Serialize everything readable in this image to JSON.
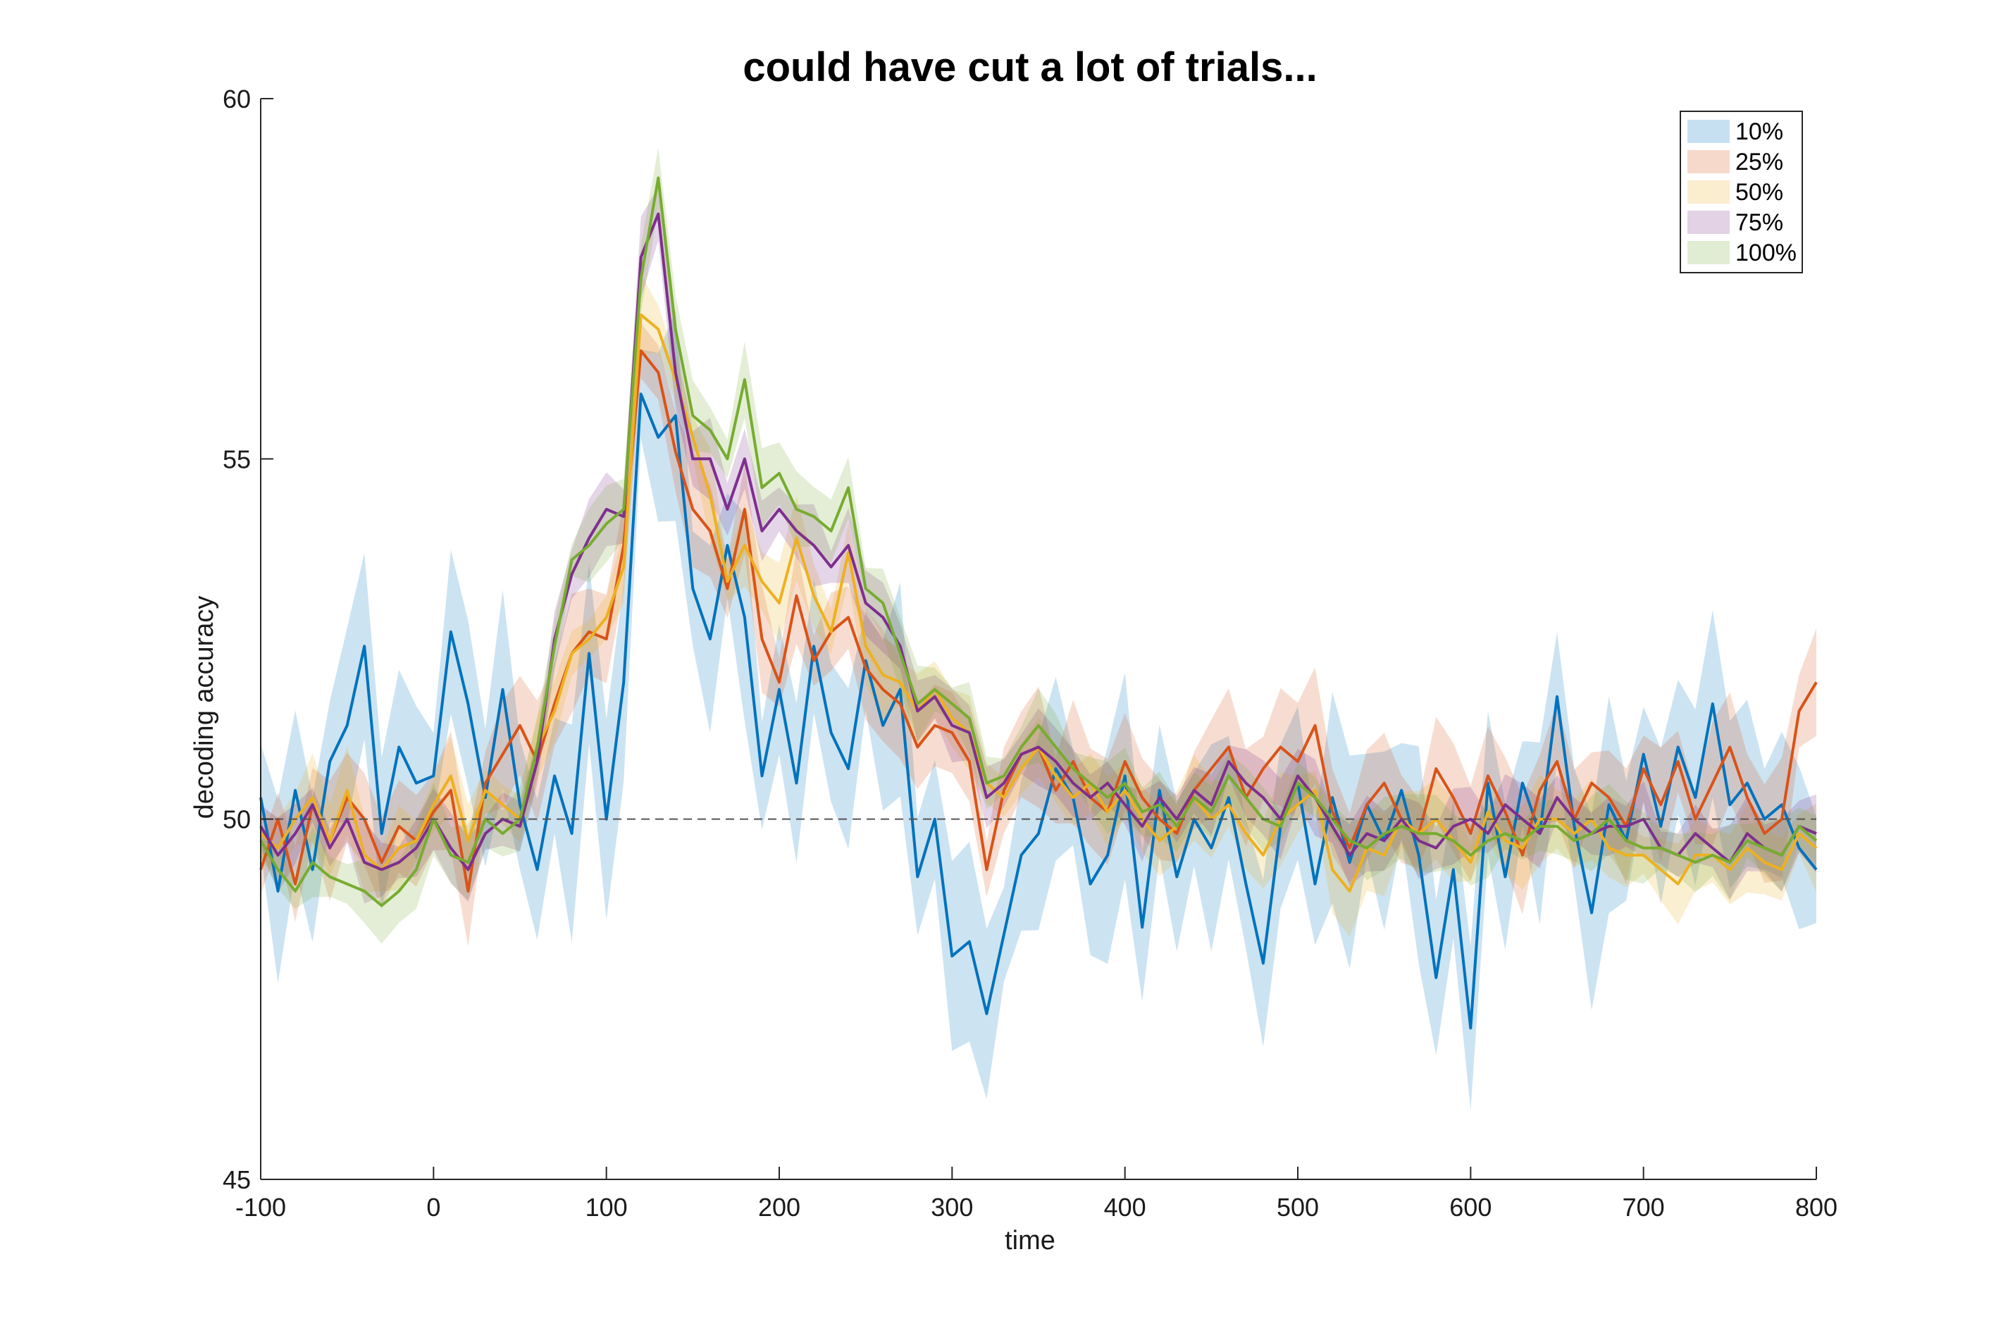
{
  "chart_data": {
    "type": "line",
    "title": "could have cut a lot of trials...",
    "xlabel": "time",
    "ylabel": "decoding accuracy",
    "xlim": [
      -100,
      800
    ],
    "ylim": [
      45,
      60
    ],
    "xticks": [
      "-100",
      "0",
      "100",
      "200",
      "300",
      "400",
      "500",
      "600",
      "700",
      "800"
    ],
    "yticks": [
      "45",
      "50",
      "55",
      "60"
    ],
    "reference_line": {
      "y": 50,
      "style": "dashed"
    },
    "legend_position": "top-right",
    "grid": false,
    "x": [
      -100,
      -90,
      -80,
      -70,
      -60,
      -50,
      -40,
      -30,
      -20,
      -10,
      0,
      10,
      20,
      30,
      40,
      50,
      60,
      70,
      80,
      90,
      100,
      110,
      120,
      130,
      140,
      150,
      160,
      170,
      180,
      190,
      200,
      210,
      220,
      230,
      240,
      250,
      260,
      270,
      280,
      290,
      300,
      310,
      320,
      330,
      340,
      350,
      360,
      370,
      380,
      390,
      400,
      410,
      420,
      430,
      440,
      450,
      460,
      470,
      480,
      490,
      500,
      510,
      520,
      530,
      540,
      550,
      560,
      570,
      580,
      590,
      600,
      610,
      620,
      630,
      640,
      650,
      660,
      670,
      680,
      690,
      700,
      710,
      720,
      730,
      740,
      750,
      760,
      770,
      780,
      790,
      800
    ],
    "series": [
      {
        "name": "10%",
        "color": "#0072BD",
        "values": [
          50.3,
          49.0,
          50.4,
          49.3,
          50.8,
          51.3,
          52.4,
          49.8,
          51.0,
          50.5,
          50.6,
          52.6,
          51.6,
          50.3,
          51.8,
          50.2,
          49.3,
          50.6,
          49.8,
          52.3,
          50.0,
          51.9,
          55.9,
          55.3,
          55.6,
          53.2,
          52.5,
          53.8,
          52.8,
          50.6,
          51.8,
          50.5,
          52.4,
          51.2,
          50.7,
          52.2,
          51.3,
          51.8,
          49.2,
          50.0,
          48.1,
          48.3,
          47.3,
          48.4,
          49.5,
          49.8,
          50.7,
          50.3,
          49.1,
          49.5,
          50.6,
          48.5,
          50.4,
          49.2,
          50.0,
          49.6,
          50.3,
          49.1,
          48.0,
          49.9,
          50.5,
          49.1,
          50.3,
          49.4,
          50.2,
          49.7,
          50.4,
          49.5,
          47.8,
          49.3,
          47.1,
          50.5,
          49.2,
          50.5,
          49.8,
          51.7,
          49.9,
          48.7,
          50.2,
          49.7,
          50.9,
          49.9,
          51.0,
          50.3,
          51.6,
          50.2,
          50.5,
          50.0,
          50.2,
          49.6,
          49.3
        ]
      },
      {
        "name": "25%",
        "color": "#D95319",
        "values": [
          49.3,
          50.0,
          49.1,
          50.2,
          49.7,
          50.3,
          50.0,
          49.4,
          49.9,
          49.7,
          50.1,
          50.4,
          49.0,
          50.5,
          50.9,
          51.3,
          50.8,
          51.6,
          52.3,
          52.6,
          52.5,
          53.8,
          56.5,
          56.2,
          55.1,
          54.3,
          54.0,
          53.2,
          54.3,
          52.5,
          51.9,
          53.1,
          52.2,
          52.6,
          52.8,
          52.1,
          51.8,
          51.6,
          51.0,
          51.3,
          51.2,
          50.8,
          49.3,
          50.4,
          50.9,
          51.0,
          50.4,
          50.8,
          50.3,
          50.1,
          50.8,
          50.3,
          50.0,
          49.8,
          50.4,
          50.7,
          51.0,
          50.3,
          50.7,
          51.0,
          50.8,
          51.3,
          50.1,
          49.6,
          50.2,
          50.5,
          50.0,
          49.8,
          50.7,
          50.3,
          49.8,
          50.6,
          50.1,
          49.5,
          50.4,
          50.8,
          50.0,
          50.5,
          50.3,
          49.9,
          50.7,
          50.2,
          50.8,
          50.0,
          50.5,
          51.0,
          50.3,
          49.8,
          50.0,
          51.5,
          51.9
        ]
      },
      {
        "name": "50%",
        "color": "#EDB120",
        "values": [
          49.8,
          49.6,
          50.0,
          50.3,
          49.7,
          50.4,
          49.5,
          49.3,
          49.6,
          49.7,
          50.2,
          50.6,
          49.7,
          50.4,
          50.2,
          50.0,
          51.0,
          51.5,
          52.3,
          52.5,
          52.8,
          53.5,
          57.0,
          56.8,
          56.1,
          55.3,
          54.5,
          53.3,
          53.8,
          53.3,
          53.0,
          53.9,
          53.1,
          52.6,
          53.7,
          52.4,
          52.0,
          51.9,
          51.5,
          51.8,
          51.4,
          51.2,
          50.5,
          50.3,
          50.7,
          51.0,
          50.6,
          50.3,
          50.5,
          50.1,
          50.4,
          50.0,
          49.7,
          49.9,
          50.3,
          50.0,
          50.2,
          49.8,
          49.5,
          50.0,
          50.2,
          50.4,
          49.3,
          49.0,
          49.6,
          49.5,
          50.0,
          49.8,
          50.0,
          49.7,
          49.4,
          50.1,
          49.7,
          49.6,
          50.0,
          50.0,
          49.8,
          50.0,
          49.6,
          49.5,
          49.5,
          49.3,
          49.1,
          49.5,
          49.5,
          49.3,
          49.6,
          49.4,
          49.3,
          49.8,
          49.6
        ]
      },
      {
        "name": "75%",
        "color": "#7E2F8E",
        "values": [
          49.9,
          49.5,
          49.8,
          50.2,
          49.6,
          50.0,
          49.4,
          49.3,
          49.4,
          49.6,
          50.0,
          49.6,
          49.3,
          49.8,
          50.0,
          49.9,
          50.8,
          52.5,
          53.4,
          53.9,
          54.3,
          54.2,
          57.8,
          58.4,
          56.2,
          55.0,
          55.0,
          54.3,
          55.0,
          54.0,
          54.3,
          54.0,
          53.8,
          53.5,
          53.8,
          53.0,
          52.8,
          52.4,
          51.5,
          51.7,
          51.3,
          51.2,
          50.3,
          50.5,
          50.9,
          51.0,
          50.8,
          50.5,
          50.3,
          50.5,
          50.2,
          49.9,
          50.3,
          50.0,
          50.4,
          50.2,
          50.8,
          50.5,
          50.3,
          50.0,
          50.6,
          50.3,
          49.9,
          49.5,
          49.8,
          49.7,
          50.0,
          49.7,
          49.6,
          49.9,
          50.0,
          49.8,
          50.2,
          50.0,
          49.8,
          50.3,
          50.0,
          49.8,
          49.9,
          49.9,
          50.0,
          49.6,
          49.5,
          49.8,
          49.6,
          49.4,
          49.8,
          49.6,
          49.5,
          49.9,
          49.8
        ]
      },
      {
        "name": "100%",
        "color": "#77AC30",
        "values": [
          49.7,
          49.3,
          49.0,
          49.4,
          49.2,
          49.1,
          49.0,
          48.8,
          49.0,
          49.3,
          50.0,
          49.5,
          49.4,
          50.0,
          49.8,
          50.0,
          51.0,
          52.4,
          53.6,
          53.8,
          54.1,
          54.3,
          57.5,
          58.9,
          56.8,
          55.6,
          55.4,
          55.0,
          56.1,
          54.6,
          54.8,
          54.3,
          54.2,
          54.0,
          54.6,
          53.2,
          53.0,
          52.3,
          51.6,
          51.8,
          51.6,
          51.4,
          50.5,
          50.6,
          51.0,
          51.3,
          51.0,
          50.7,
          50.5,
          50.3,
          50.5,
          50.1,
          50.2,
          49.9,
          50.3,
          50.1,
          50.6,
          50.3,
          50.0,
          49.9,
          50.5,
          50.3,
          50.0,
          49.7,
          49.6,
          49.8,
          49.9,
          49.8,
          49.8,
          49.7,
          49.5,
          49.7,
          49.8,
          49.7,
          49.9,
          49.9,
          49.7,
          49.8,
          50.0,
          49.7,
          49.6,
          49.6,
          49.5,
          49.4,
          49.5,
          49.4,
          49.7,
          49.6,
          49.5,
          49.9,
          49.7
        ]
      }
    ]
  }
}
